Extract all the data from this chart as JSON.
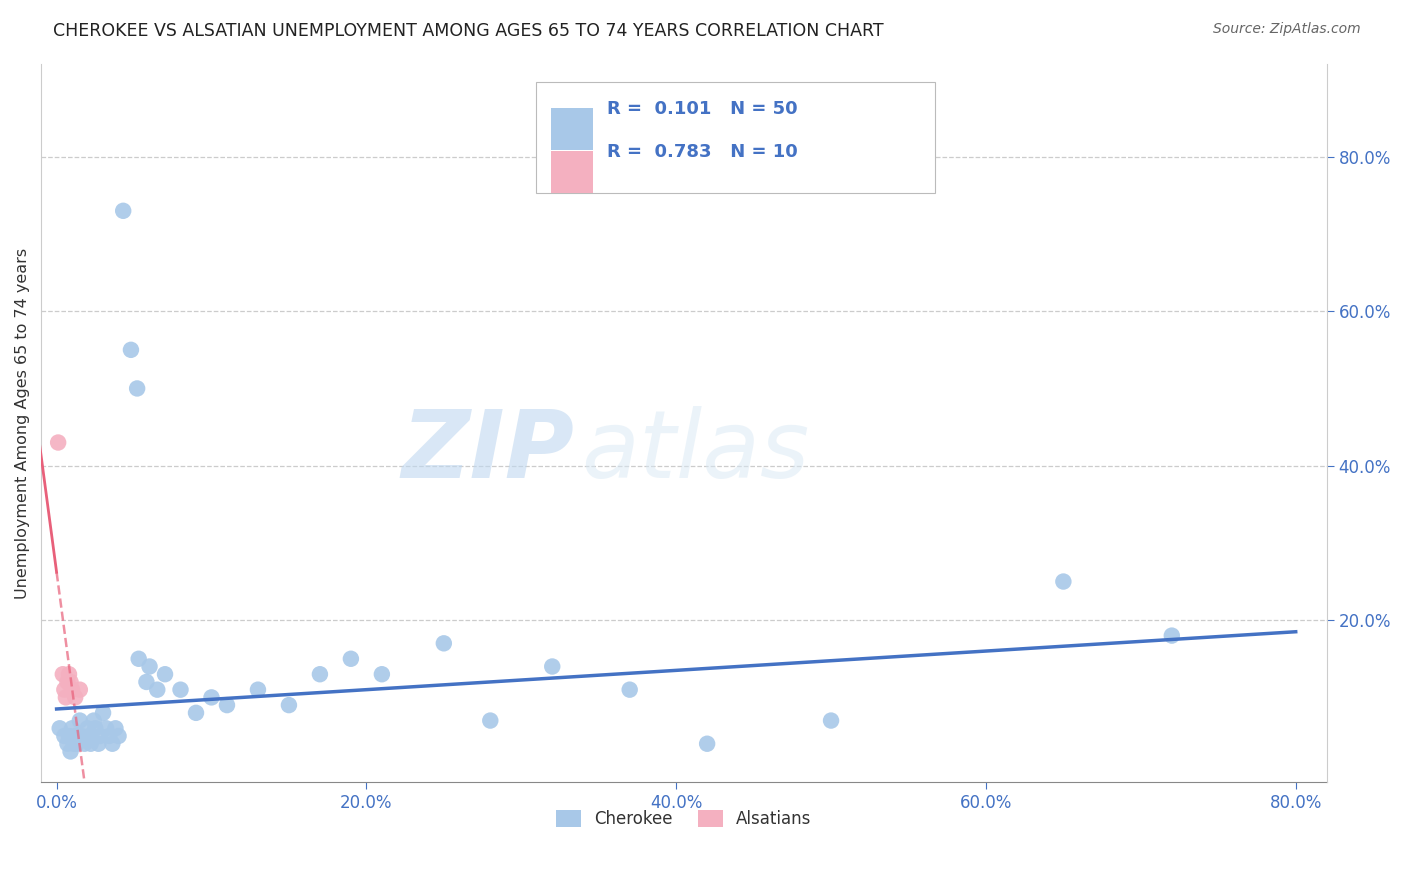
{
  "title": "CHEROKEE VS ALSATIAN UNEMPLOYMENT AMONG AGES 65 TO 74 YEARS CORRELATION CHART",
  "source": "Source: ZipAtlas.com",
  "ylabel": "Unemployment Among Ages 65 to 74 years",
  "xlim": [
    -0.01,
    0.82
  ],
  "ylim": [
    -0.01,
    0.92
  ],
  "xticks": [
    0.0,
    0.2,
    0.4,
    0.6,
    0.8
  ],
  "yticks": [
    0.2,
    0.4,
    0.6,
    0.8
  ],
  "xtick_labels": [
    "0.0%",
    "20.0%",
    "40.0%",
    "60.0%",
    "80.0%"
  ],
  "ytick_labels": [
    "20.0%",
    "40.0%",
    "60.0%",
    "80.0%"
  ],
  "cherokee_R": 0.101,
  "cherokee_N": 50,
  "alsatian_R": 0.783,
  "alsatian_N": 10,
  "cherokee_color": "#a8c8e8",
  "cherokee_line_color": "#4472c4",
  "alsatian_color": "#f4b0c0",
  "alsatian_line_color": "#e8607a",
  "tick_color": "#4472c4",
  "watermark_zip": "ZIP",
  "watermark_atlas": "atlas",
  "background_color": "#ffffff",
  "grid_color": "#cccccc",
  "cherokee_x": [
    0.002,
    0.005,
    0.007,
    0.008,
    0.009,
    0.01,
    0.011,
    0.012,
    0.013,
    0.015,
    0.016,
    0.018,
    0.02,
    0.021,
    0.022,
    0.024,
    0.025,
    0.027,
    0.028,
    0.03,
    0.032,
    0.034,
    0.036,
    0.038,
    0.04,
    0.043,
    0.048,
    0.052,
    0.053,
    0.058,
    0.06,
    0.065,
    0.07,
    0.08,
    0.09,
    0.1,
    0.11,
    0.13,
    0.15,
    0.17,
    0.19,
    0.21,
    0.25,
    0.28,
    0.32,
    0.37,
    0.42,
    0.5,
    0.65,
    0.72
  ],
  "cherokee_y": [
    0.06,
    0.05,
    0.04,
    0.05,
    0.03,
    0.06,
    0.04,
    0.05,
    0.04,
    0.07,
    0.05,
    0.04,
    0.06,
    0.05,
    0.04,
    0.07,
    0.06,
    0.04,
    0.05,
    0.08,
    0.06,
    0.05,
    0.04,
    0.06,
    0.05,
    0.73,
    0.55,
    0.5,
    0.15,
    0.12,
    0.14,
    0.11,
    0.13,
    0.11,
    0.08,
    0.1,
    0.09,
    0.11,
    0.09,
    0.13,
    0.15,
    0.13,
    0.17,
    0.07,
    0.14,
    0.11,
    0.04,
    0.07,
    0.25,
    0.18
  ],
  "alsatian_x": [
    0.001,
    0.004,
    0.005,
    0.006,
    0.007,
    0.008,
    0.009,
    0.01,
    0.012,
    0.015
  ],
  "alsatian_y": [
    0.43,
    0.13,
    0.11,
    0.1,
    0.12,
    0.13,
    0.12,
    0.11,
    0.1,
    0.11
  ]
}
